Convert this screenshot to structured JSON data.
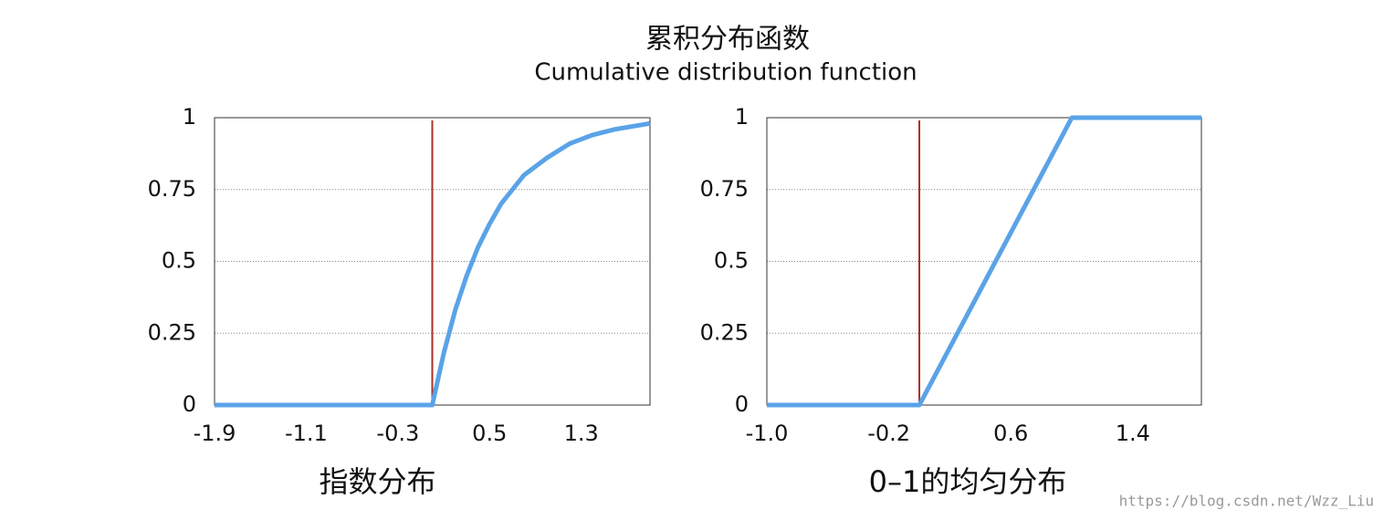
{
  "title": "累积分布函数",
  "subtitle": "Cumulative distribution function",
  "watermark": "https://blog.csdn.net/Wzz_Liu",
  "chart_data": [
    {
      "type": "line",
      "xlabel": "指数分布",
      "x": [
        -1.9,
        0,
        0.1,
        0.2,
        0.3,
        0.4,
        0.5,
        0.6,
        0.8,
        1.0,
        1.2,
        1.4,
        1.6,
        1.9
      ],
      "series": [
        {
          "color": "#5aa3e8",
          "values": [
            0,
            0,
            0.18,
            0.33,
            0.45,
            0.55,
            0.63,
            0.7,
            0.8,
            0.86,
            0.91,
            0.94,
            0.96,
            0.98
          ]
        }
      ],
      "xlim": [
        -1.9,
        1.9
      ],
      "ylim": [
        0,
        1
      ],
      "xticks": [
        -1.9,
        -1.1,
        -0.3,
        0.5,
        1.3
      ],
      "yticks": [
        0,
        0.25,
        0.5,
        0.75,
        1
      ],
      "vline": 0,
      "vline_color": "#a83228",
      "grid": true
    },
    {
      "type": "line",
      "xlabel": "0–1的均匀分布",
      "x": [
        -1.0,
        0,
        1.0,
        1.85
      ],
      "series": [
        {
          "color": "#5aa3e8",
          "values": [
            0,
            0,
            1,
            1
          ]
        }
      ],
      "xlim": [
        -1.0,
        1.85
      ],
      "ylim": [
        0,
        1
      ],
      "xticks": [
        {
          "value": -1.0,
          "label": "-1.0"
        },
        -0.2,
        0.6,
        1.4
      ],
      "yticks": [
        0,
        0.25,
        0.5,
        0.75,
        1
      ],
      "vline": 0,
      "vline_color": "#a83228",
      "grid": true
    }
  ]
}
